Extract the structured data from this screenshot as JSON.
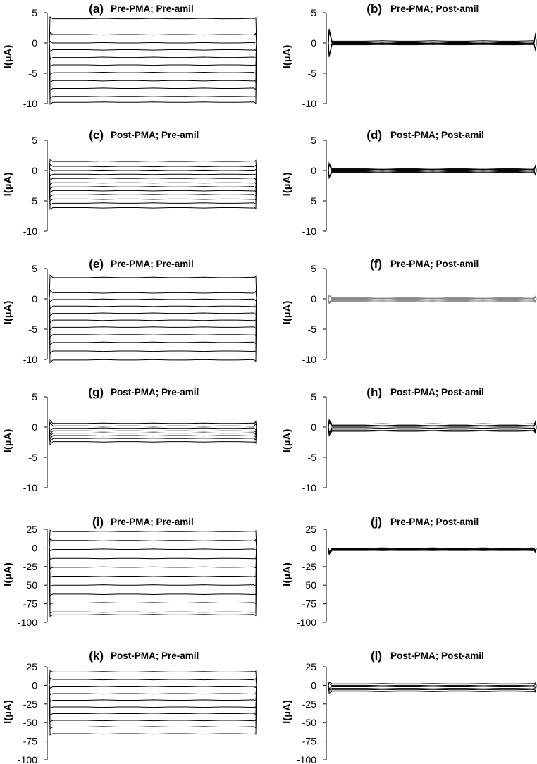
{
  "chart_data": [
    {
      "id": "a",
      "type": "line",
      "letter": "(a)",
      "title": "Pre-PMA; Pre-amil",
      "ylabel": "I(µA)",
      "ylim": [
        -10,
        5
      ],
      "yticks": [
        5,
        0,
        -5,
        -10
      ],
      "series_levels": [
        4.0,
        1.4,
        0.0,
        -1.1,
        -2.4,
        -3.6,
        -4.9,
        -6.2,
        -7.5,
        -8.8,
        -9.8
      ],
      "trace_color": "#000000",
      "transient_amplitude": 0.5
    },
    {
      "id": "b",
      "type": "line",
      "letter": "(b)",
      "title": "Pre-PMA; Post-amil",
      "ylabel": "I(µA)",
      "ylim": [
        -10,
        5
      ],
      "yticks": [
        5,
        0,
        -5,
        -10
      ],
      "series_levels": [
        0.3,
        0.2,
        0.1,
        0.0,
        -0.1,
        -0.2,
        -0.3
      ],
      "trace_color": "#000000",
      "transient_amplitude": 3.4
    },
    {
      "id": "c",
      "type": "line",
      "letter": "(c)",
      "title": "Post-PMA; Pre-amil",
      "ylabel": "I(µA)",
      "ylim": [
        -10,
        5
      ],
      "yticks": [
        5,
        0,
        -5,
        -10
      ],
      "series_levels": [
        1.5,
        0.7,
        0.0,
        -0.6,
        -1.3,
        -2.0,
        -2.7,
        -3.3,
        -4.0,
        -4.7,
        -5.4,
        -6.1
      ],
      "trace_color": "#000000",
      "transient_amplitude": 0.5
    },
    {
      "id": "d",
      "type": "line",
      "letter": "(d)",
      "title": "Post-PMA; Post-amil",
      "ylabel": "I(µA)",
      "ylim": [
        -10,
        5
      ],
      "yticks": [
        5,
        0,
        -5,
        -10
      ],
      "series_levels": [
        0.3,
        0.2,
        0.1,
        0.0,
        -0.1,
        -0.2,
        -0.3
      ],
      "trace_color": "#000000",
      "transient_amplitude": 1.6
    },
    {
      "id": "e",
      "type": "line",
      "letter": "(e)",
      "title": "Pre-PMA; Pre-amil",
      "ylabel": "I(µA)",
      "ylim": [
        -10,
        5
      ],
      "yticks": [
        5,
        0,
        -5,
        -10
      ],
      "series_levels": [
        3.5,
        1.0,
        -0.1,
        -1.2,
        -2.4,
        -3.5,
        -4.7,
        -5.9,
        -7.2,
        -8.6,
        -10.1
      ],
      "trace_color": "#000000",
      "transient_amplitude": 0.7
    },
    {
      "id": "f",
      "type": "line",
      "letter": "(f)",
      "title": "Pre-PMA; Post-amil",
      "ylabel": "I(µA)",
      "ylim": [
        -10,
        5
      ],
      "yticks": [
        5,
        0,
        -5,
        -10
      ],
      "series_levels": [
        0.2,
        0.1,
        0.0,
        -0.1,
        -0.2,
        -0.3,
        -0.4
      ],
      "trace_color": "#888888",
      "transient_amplitude": 0.7
    },
    {
      "id": "g",
      "type": "line",
      "letter": "(g)",
      "title": "Post-PMA; Pre-amil",
      "ylabel": "I(µA)",
      "ylim": [
        -10,
        5
      ],
      "yticks": [
        5,
        0,
        -5,
        -10
      ],
      "series_levels": [
        0.6,
        0.2,
        -0.2,
        -0.6,
        -1.0,
        -1.4,
        -1.9,
        -2.4
      ],
      "trace_color": "#000000",
      "transient_amplitude": 0.9
    },
    {
      "id": "h",
      "type": "line",
      "letter": "(h)",
      "title": "Post-PMA; Post-amil",
      "ylabel": "I(µA)",
      "ylim": [
        -10,
        5
      ],
      "yticks": [
        5,
        0,
        -5,
        -10
      ],
      "series_levels": [
        0.5,
        0.3,
        0.1,
        -0.1,
        -0.3,
        -0.5,
        -0.7
      ],
      "trace_color": "#000000",
      "transient_amplitude": 1.2
    },
    {
      "id": "i",
      "type": "line",
      "letter": "(i)",
      "title": "Pre-PMA; Pre-amil",
      "ylabel": "I(µA)",
      "ylim": [
        -100,
        25
      ],
      "yticks": [
        25,
        0,
        -25,
        -50,
        -75,
        -100
      ],
      "series_levels": [
        22,
        10,
        -2,
        -14,
        -26,
        -38,
        -50,
        -62,
        -74,
        -86,
        -90
      ],
      "trace_color": "#000000",
      "transient_amplitude": 3
    },
    {
      "id": "j",
      "type": "line",
      "letter": "(j)",
      "title": "Pre-PMA; Post-amil",
      "ylabel": "I(µA)",
      "ylim": [
        -100,
        25
      ],
      "yticks": [
        25,
        0,
        -25,
        -50,
        -75,
        -100
      ],
      "series_levels": [
        -0.5,
        -1.0,
        -1.5,
        -2.0,
        -2.5,
        -3.0,
        -3.5
      ],
      "trace_color": "#000000",
      "transient_amplitude": 9
    },
    {
      "id": "k",
      "type": "line",
      "letter": "(k)",
      "title": "Post-PMA; Pre-amil",
      "ylabel": "I(µA)",
      "ylim": [
        -100,
        25
      ],
      "yticks": [
        25,
        0,
        -25,
        -50,
        -75,
        -100
      ],
      "series_levels": [
        18,
        8,
        -2,
        -11,
        -20,
        -29,
        -38,
        -47,
        -56,
        -65
      ],
      "trace_color": "#000000",
      "transient_amplitude": 3
    },
    {
      "id": "l",
      "type": "line",
      "letter": "(l)",
      "title": "Post-PMA; Post-amil",
      "ylabel": "I(µA)",
      "ylim": [
        -100,
        25
      ],
      "yticks": [
        25,
        0,
        -25,
        -50,
        -75,
        -100
      ],
      "series_levels": [
        2,
        0,
        -2,
        -4,
        -6,
        -8
      ],
      "trace_color": "#000000",
      "transient_amplitude": 4
    }
  ]
}
